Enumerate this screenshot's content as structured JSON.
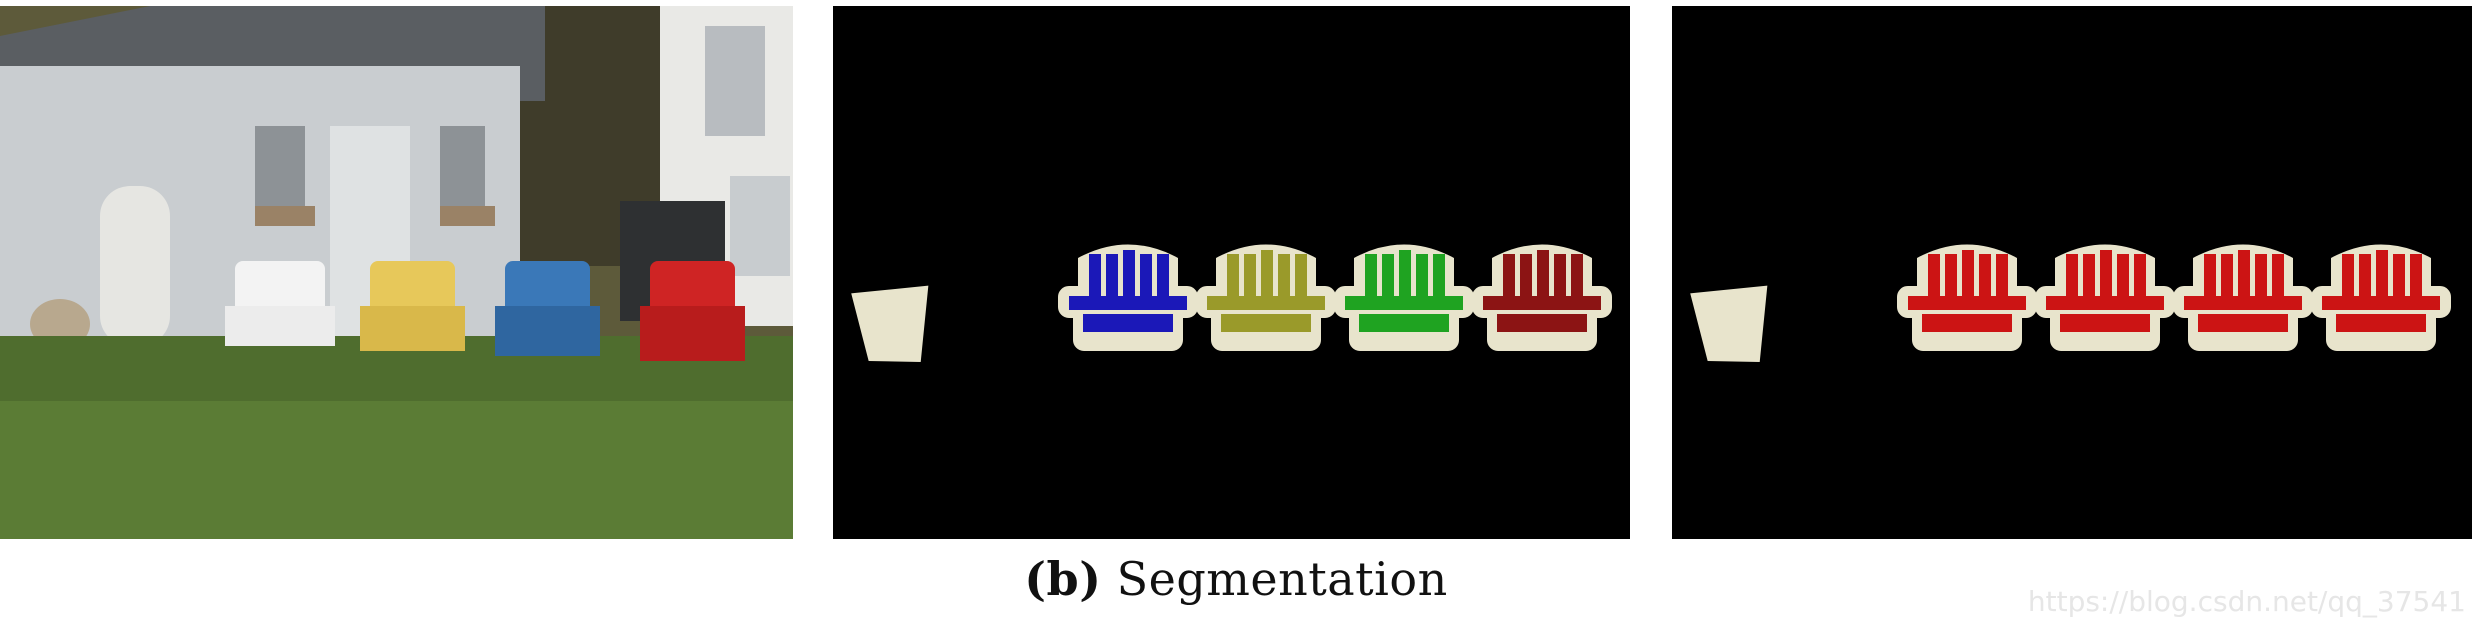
{
  "figure": {
    "caption_label": "(b)",
    "caption_text": "Segmentation",
    "watermark": "https://blog.csdn.net/qq_37541"
  },
  "panels": [
    {
      "id": "photo",
      "kind": "natural-image"
    },
    {
      "id": "instance",
      "kind": "mask",
      "background": "#000000",
      "outline": "#e8e4cc",
      "fill_colors": [
        "#1b18b8",
        "#9a9a2a",
        "#1fa321",
        "#8c1414"
      ],
      "object_fill": "#e8e4cc"
    },
    {
      "id": "semantic",
      "kind": "mask",
      "background": "#000000",
      "outline": "#e8e4cc",
      "fill_colors": [
        "#cc1414",
        "#cc1414",
        "#cc1414",
        "#cc1414"
      ],
      "object_fill": "#e8e4cc"
    }
  ]
}
